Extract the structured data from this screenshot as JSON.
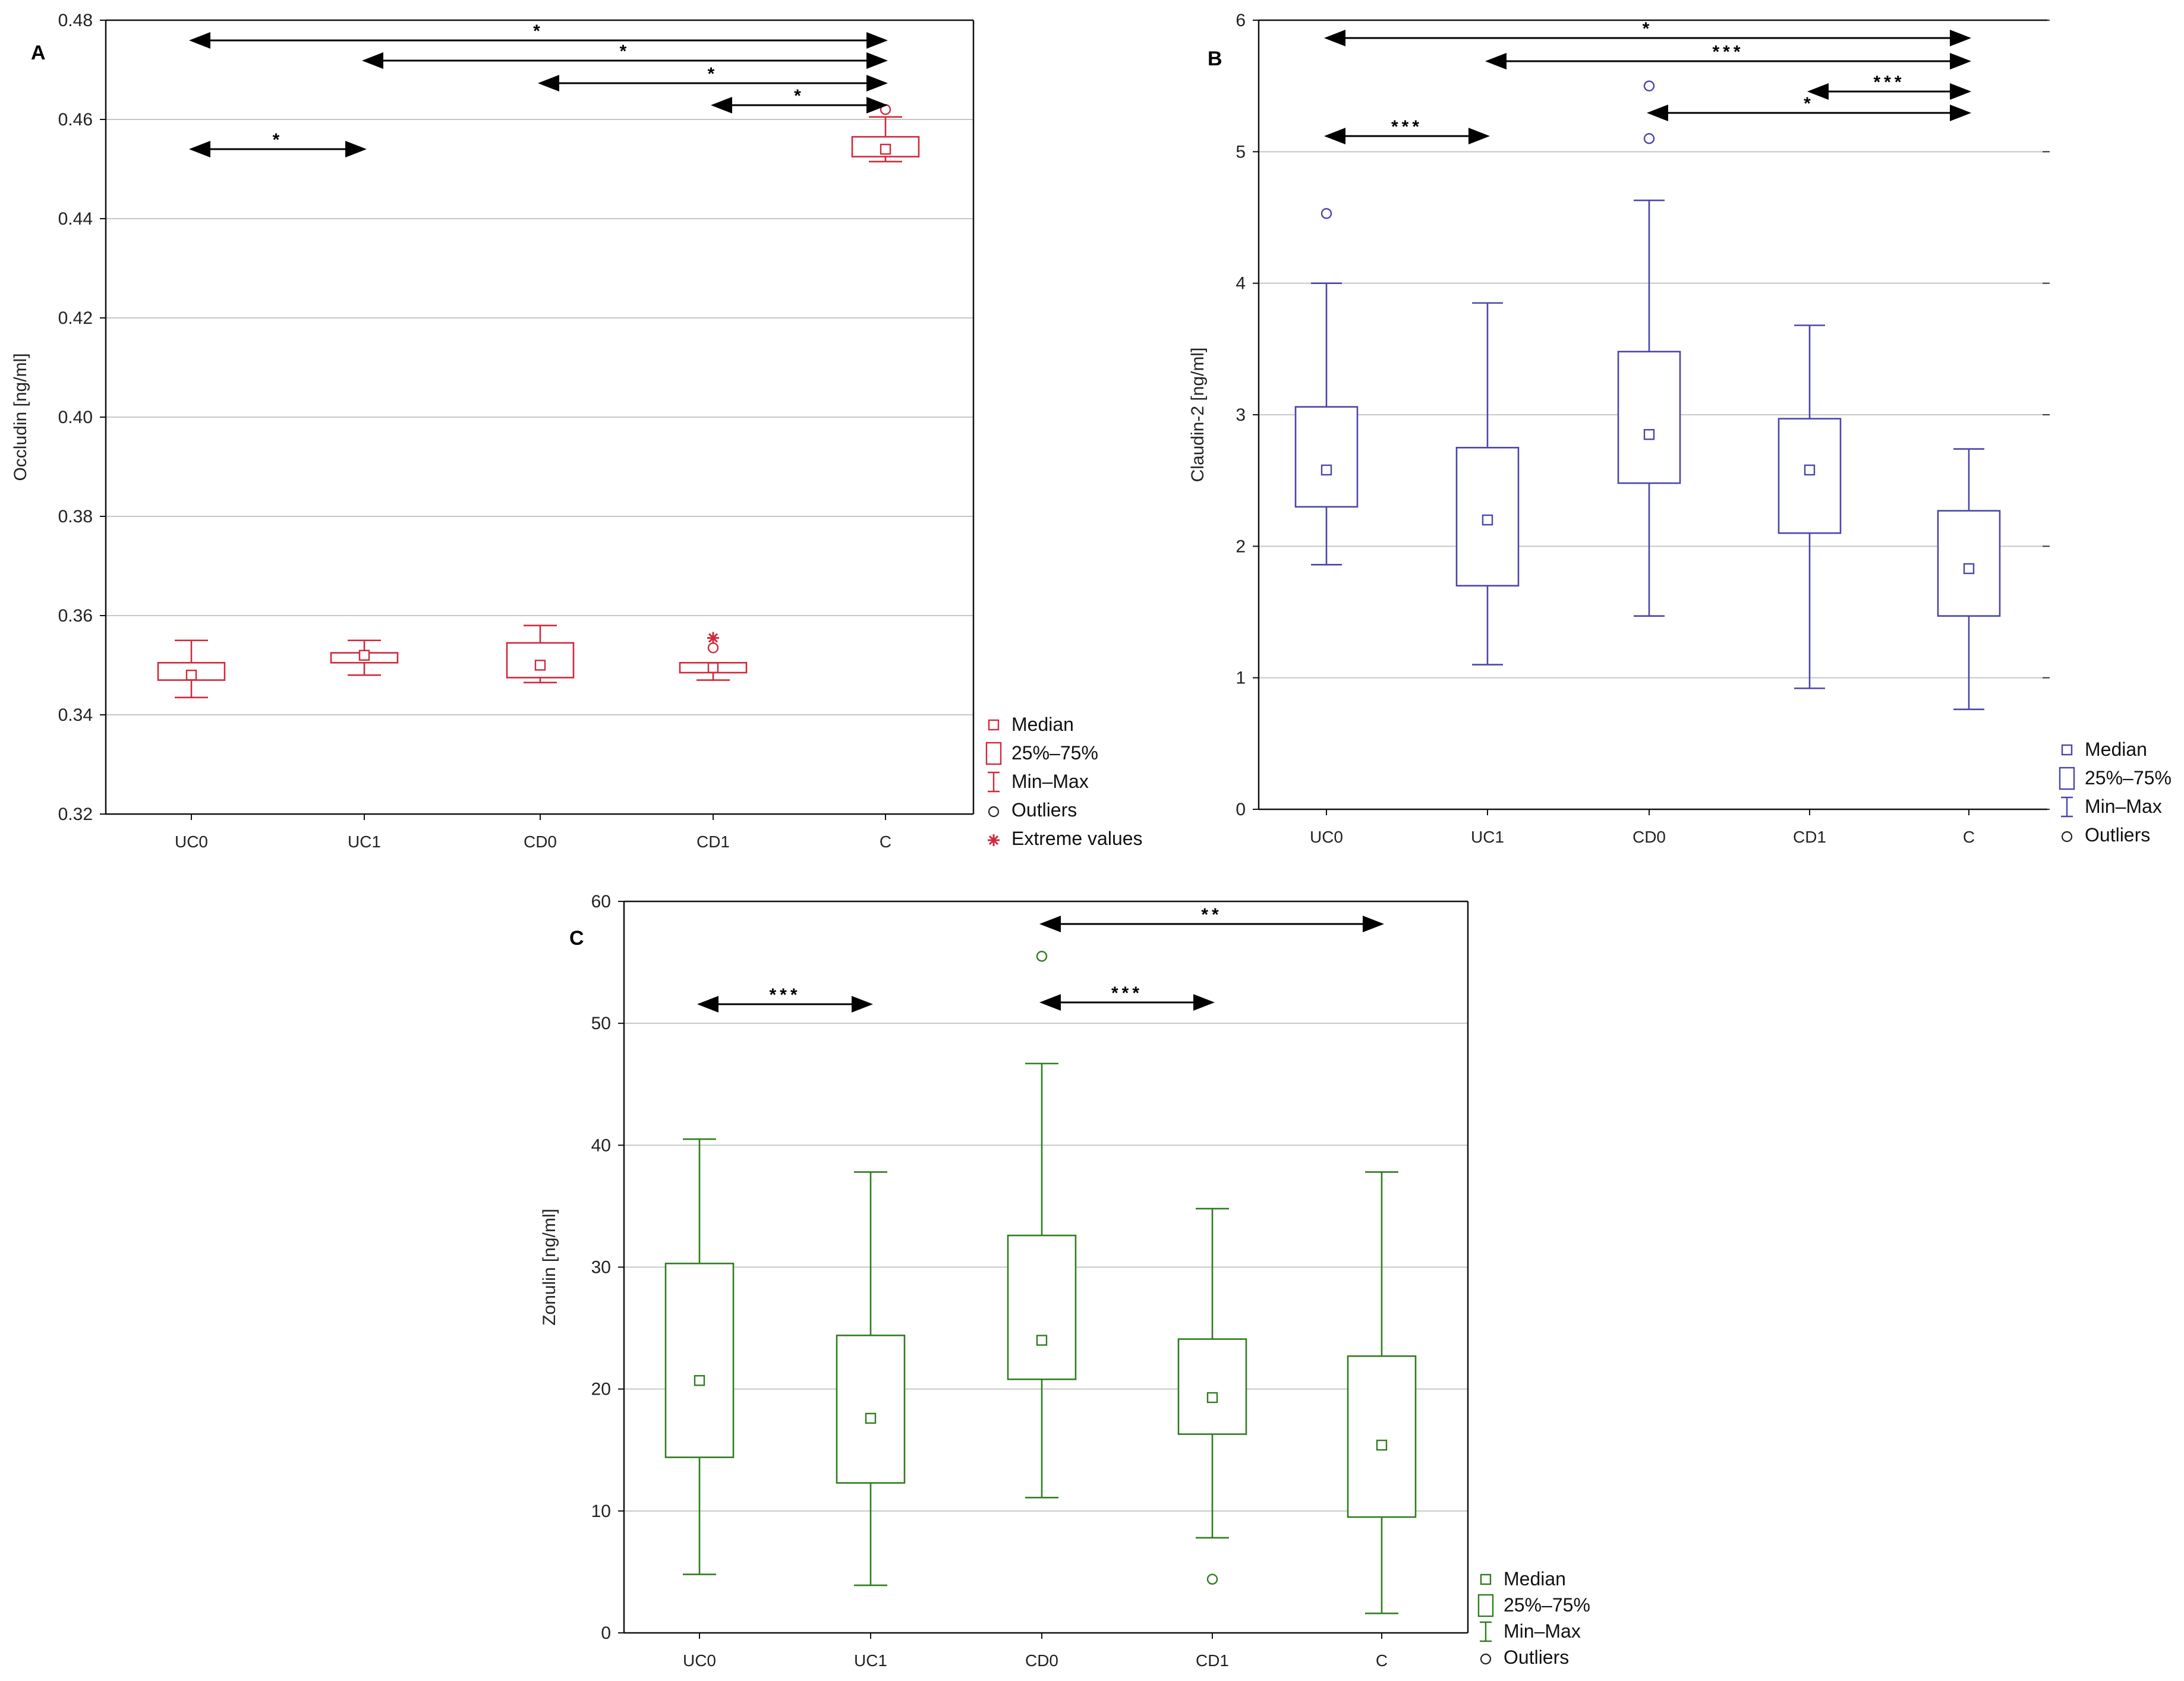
{
  "chart_data": [
    {
      "type": "boxplot",
      "panel_letter": "A",
      "ylabel": "Occludin [ng/ml]",
      "xlabel": "",
      "categories": [
        "UC0",
        "UC1",
        "CD0",
        "CD1",
        "C"
      ],
      "ylim": [
        0.32,
        0.48
      ],
      "yticks": [
        "0.32",
        "0.34",
        "0.36",
        "0.38",
        "0.40",
        "0.42",
        "0.44",
        "0.46",
        "0.48"
      ],
      "grid": true,
      "color": "#d0293c",
      "boxes": [
        {
          "category": "UC0",
          "median": 0.348,
          "q1": 0.347,
          "q3": 0.3505,
          "min": 0.3435,
          "max": 0.355,
          "outliers": [],
          "extremes": []
        },
        {
          "category": "UC1",
          "median": 0.352,
          "q1": 0.3505,
          "q3": 0.3525,
          "min": 0.348,
          "max": 0.355,
          "outliers": [],
          "extremes": []
        },
        {
          "category": "CD0",
          "median": 0.35,
          "q1": 0.3475,
          "q3": 0.3545,
          "min": 0.3465,
          "max": 0.358,
          "outliers": [],
          "extremes": []
        },
        {
          "category": "CD1",
          "median": 0.3495,
          "q1": 0.3485,
          "q3": 0.3505,
          "min": 0.347,
          "max": 0.3505,
          "outliers": [
            0.3535
          ],
          "extremes": [
            0.3555
          ]
        },
        {
          "category": "C",
          "median": 0.454,
          "q1": 0.4525,
          "q3": 0.4565,
          "min": 0.4515,
          "max": 0.4605,
          "outliers": [
            0.462
          ],
          "extremes": []
        }
      ],
      "significance": [
        {
          "from": "UC0",
          "to": "C",
          "label": "*"
        },
        {
          "from": "UC1",
          "to": "C",
          "label": "*"
        },
        {
          "from": "CD0",
          "to": "C",
          "label": "*"
        },
        {
          "from": "CD1",
          "to": "C",
          "label": "*"
        },
        {
          "from": "UC0",
          "to": "UC1",
          "label": "*"
        }
      ],
      "legend": [
        "Median",
        "25%–75%",
        "Min–Max",
        "Outliers",
        "Extreme values"
      ]
    },
    {
      "type": "boxplot",
      "panel_letter": "B",
      "ylabel": "Claudin-2 [ng/ml]",
      "xlabel": "",
      "categories": [
        "UC0",
        "UC1",
        "CD0",
        "CD1",
        "C"
      ],
      "ylim": [
        0,
        6
      ],
      "yticks": [
        "0",
        "1",
        "2",
        "3",
        "4",
        "5",
        "6"
      ],
      "grid": true,
      "color": "#4b45a8",
      "boxes": [
        {
          "category": "UC0",
          "median": 2.58,
          "q1": 2.3,
          "q3": 3.06,
          "min": 1.86,
          "max": 4.0,
          "outliers": [
            4.53
          ],
          "extremes": []
        },
        {
          "category": "UC1",
          "median": 2.2,
          "q1": 1.7,
          "q3": 2.75,
          "min": 1.1,
          "max": 3.85,
          "outliers": [],
          "extremes": []
        },
        {
          "category": "CD0",
          "median": 2.85,
          "q1": 2.48,
          "q3": 3.48,
          "min": 1.47,
          "max": 4.63,
          "outliers": [
            5.1,
            5.5
          ],
          "extremes": []
        },
        {
          "category": "CD1",
          "median": 2.58,
          "q1": 2.1,
          "q3": 2.97,
          "min": 0.92,
          "max": 3.68,
          "outliers": [],
          "extremes": []
        },
        {
          "category": "C",
          "median": 1.83,
          "q1": 1.47,
          "q3": 2.27,
          "min": 0.76,
          "max": 2.74,
          "outliers": [],
          "extremes": []
        }
      ],
      "significance": [
        {
          "from": "UC0",
          "to": "C",
          "label": "*"
        },
        {
          "from": "UC1",
          "to": "C",
          "label": "***"
        },
        {
          "from": "CD1",
          "to": "C",
          "label": "***"
        },
        {
          "from": "CD0",
          "to": "C",
          "label": "*"
        },
        {
          "from": "UC0",
          "to": "UC1",
          "label": "***"
        }
      ],
      "legend": [
        "Median",
        "25%–75%",
        "Min–Max",
        "Outliers"
      ]
    },
    {
      "type": "boxplot",
      "panel_letter": "C",
      "ylabel": "Zonulin [ng/ml]",
      "xlabel": "",
      "categories": [
        "UC0",
        "UC1",
        "CD0",
        "CD1",
        "C"
      ],
      "ylim": [
        0,
        60
      ],
      "yticks": [
        "0",
        "10",
        "20",
        "30",
        "40",
        "50",
        "60"
      ],
      "grid": true,
      "color": "#2e7d1e",
      "boxes": [
        {
          "category": "UC0",
          "median": 20.7,
          "q1": 14.4,
          "q3": 30.3,
          "min": 4.8,
          "max": 40.5,
          "outliers": [],
          "extremes": []
        },
        {
          "category": "UC1",
          "median": 17.6,
          "q1": 12.3,
          "q3": 24.4,
          "min": 3.9,
          "max": 37.8,
          "outliers": [],
          "extremes": []
        },
        {
          "category": "CD0",
          "median": 24.0,
          "q1": 20.8,
          "q3": 32.6,
          "min": 11.1,
          "max": 46.7,
          "outliers": [
            55.5
          ],
          "extremes": []
        },
        {
          "category": "CD1",
          "median": 19.3,
          "q1": 16.3,
          "q3": 24.1,
          "min": 7.8,
          "max": 34.8,
          "outliers": [
            4.4
          ],
          "extremes": []
        },
        {
          "category": "C",
          "median": 15.4,
          "q1": 9.5,
          "q3": 22.7,
          "min": 1.6,
          "max": 37.8,
          "outliers": [],
          "extremes": []
        }
      ],
      "significance": [
        {
          "from": "CD0",
          "to": "C",
          "label": "**"
        },
        {
          "from": "UC0",
          "to": "UC1",
          "label": "***"
        },
        {
          "from": "CD0",
          "to": "CD1",
          "label": "***"
        }
      ],
      "legend": [
        "Median",
        "25%–75%",
        "Min–Max",
        "Outliers"
      ]
    }
  ]
}
